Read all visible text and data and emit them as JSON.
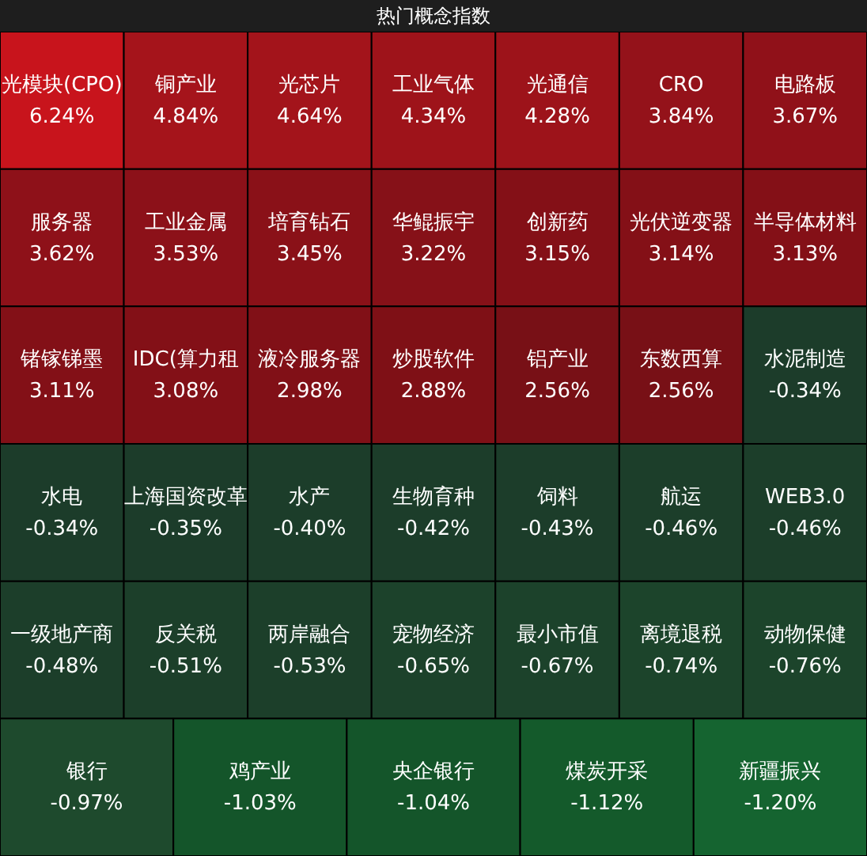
{
  "chart_data": {
    "type": "other",
    "title": "热门概念指数",
    "categories": [
      "光模块(CPO)",
      "铜产业",
      "光芯片",
      "工业气体",
      "光通信",
      "CRO",
      "电路板",
      "服务器",
      "工业金属",
      "培育钻石",
      "华鲲振宇",
      "创新药",
      "光伏逆变器",
      "半导体材料",
      "锗镓锑墨",
      "IDC(算力租",
      "液冷服务器",
      "炒股软件",
      "铝产业",
      "东数西算",
      "水泥制造",
      "水电",
      "上海国资改革",
      "水产",
      "生物育种",
      "饲料",
      "航运",
      "WEB3.0",
      "一级地产商",
      "反关税",
      "两岸融合",
      "宠物经济",
      "最小市值",
      "离境退税",
      "动物保健",
      "银行",
      "鸡产业",
      "央企银行",
      "煤炭开采",
      "新疆振兴"
    ],
    "values": [
      6.24,
      4.84,
      4.64,
      4.34,
      4.28,
      3.84,
      3.67,
      3.62,
      3.53,
      3.45,
      3.22,
      3.15,
      3.14,
      3.13,
      3.11,
      3.08,
      2.98,
      2.88,
      2.56,
      2.56,
      -0.34,
      -0.34,
      -0.35,
      -0.4,
      -0.42,
      -0.43,
      -0.46,
      -0.46,
      -0.48,
      -0.51,
      -0.53,
      -0.65,
      -0.67,
      -0.74,
      -0.76,
      -0.97,
      -1.03,
      -1.04,
      -1.12,
      -1.2
    ],
    "value_labels": [
      "6.24%",
      "4.84%",
      "4.64%",
      "4.34%",
      "4.28%",
      "3.84%",
      "3.67%",
      "3.62%",
      "3.53%",
      "3.45%",
      "3.22%",
      "3.15%",
      "3.14%",
      "3.13%",
      "3.11%",
      "3.08%",
      "2.98%",
      "2.88%",
      "2.56%",
      "2.56%",
      "-0.34%",
      "-0.34%",
      "-0.35%",
      "-0.40%",
      "-0.42%",
      "-0.43%",
      "-0.46%",
      "-0.46%",
      "-0.48%",
      "-0.51%",
      "-0.53%",
      "-0.65%",
      "-0.67%",
      "-0.74%",
      "-0.76%",
      "-0.97%",
      "-1.03%",
      "-1.04%",
      "-1.12%",
      "-1.20%"
    ],
    "colors": [
      "#c8141c",
      "#a5141b",
      "#a3141b",
      "#9e131a",
      "#9d131a",
      "#94121a",
      "#901119",
      "#8e1119",
      "#8c1119",
      "#8a1118",
      "#861118",
      "#841017",
      "#841017",
      "#841017",
      "#831017",
      "#831017",
      "#811017",
      "#7f1016",
      "#781016",
      "#781016",
      "#1c3c2a",
      "#1c3c2a",
      "#1c3c2a",
      "#1c3d2a",
      "#1c3d2a",
      "#1c3d2a",
      "#1c3e2a",
      "#1c3e2a",
      "#1c3e2a",
      "#1c3f2a",
      "#1c3f2a",
      "#1c422b",
      "#1c422b",
      "#1c442b",
      "#1c442b",
      "#1e4a2d",
      "#14552a",
      "#14552a",
      "#145a2b",
      "#156430"
    ]
  }
}
